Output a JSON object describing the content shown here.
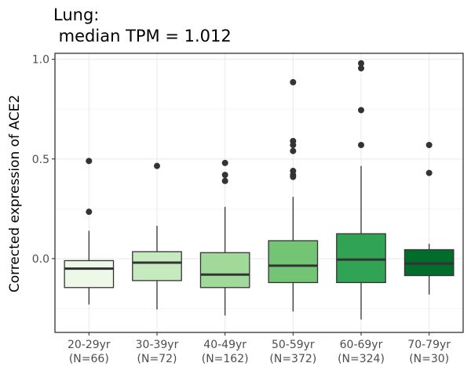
{
  "chart_data": {
    "type": "boxplot",
    "title_lines": [
      "Lung:",
      " median TPM = 1.012"
    ],
    "xlabel": "",
    "ylabel": "Corrected expression of ACE2",
    "ylim": [
      -0.37,
      1.03
    ],
    "yticks": [
      0.0,
      0.5,
      1.0
    ],
    "ytick_labels": [
      "0.0",
      "0.5",
      "1.0"
    ],
    "grid": true,
    "legend": "none",
    "categories": [
      {
        "label": "20-29yr",
        "n": "(N=66)"
      },
      {
        "label": "30-39yr",
        "n": "(N=72)"
      },
      {
        "label": "40-49yr",
        "n": "(N=162)"
      },
      {
        "label": "50-59yr",
        "n": "(N=372)"
      },
      {
        "label": "60-69yr",
        "n": "(N=324)"
      },
      {
        "label": "70-79yr",
        "n": "(N=30)"
      }
    ],
    "boxes": [
      {
        "category": "20-29yr",
        "color": "#edf8e9",
        "whisker_low": -0.23,
        "q1": -0.145,
        "median": -0.05,
        "q3": -0.01,
        "whisker_high": 0.14,
        "outliers": [
          0.49,
          0.235
        ]
      },
      {
        "category": "30-39yr",
        "color": "#c7e9c0",
        "whisker_low": -0.255,
        "q1": -0.11,
        "median": -0.02,
        "q3": 0.035,
        "whisker_high": 0.165,
        "outliers": [
          0.465
        ]
      },
      {
        "category": "40-49yr",
        "color": "#a1d99b",
        "whisker_low": -0.285,
        "q1": -0.145,
        "median": -0.08,
        "q3": 0.03,
        "whisker_high": 0.26,
        "outliers": [
          0.48,
          0.42,
          0.39
        ]
      },
      {
        "category": "50-59yr",
        "color": "#74c476",
        "whisker_low": -0.265,
        "q1": -0.12,
        "median": -0.035,
        "q3": 0.09,
        "whisker_high": 0.31,
        "outliers": [
          0.885,
          0.59,
          0.57,
          0.54,
          0.44,
          0.42,
          0.41
        ]
      },
      {
        "category": "60-69yr",
        "color": "#31a354",
        "whisker_low": -0.305,
        "q1": -0.12,
        "median": -0.005,
        "q3": 0.125,
        "whisker_high": 0.465,
        "outliers": [
          0.98,
          0.955,
          0.745,
          0.57
        ]
      },
      {
        "category": "70-79yr",
        "color": "#006d2c",
        "whisker_low": -0.18,
        "q1": -0.085,
        "median": -0.025,
        "q3": 0.045,
        "whisker_high": 0.075,
        "outliers": [
          0.57,
          0.43
        ]
      }
    ]
  }
}
